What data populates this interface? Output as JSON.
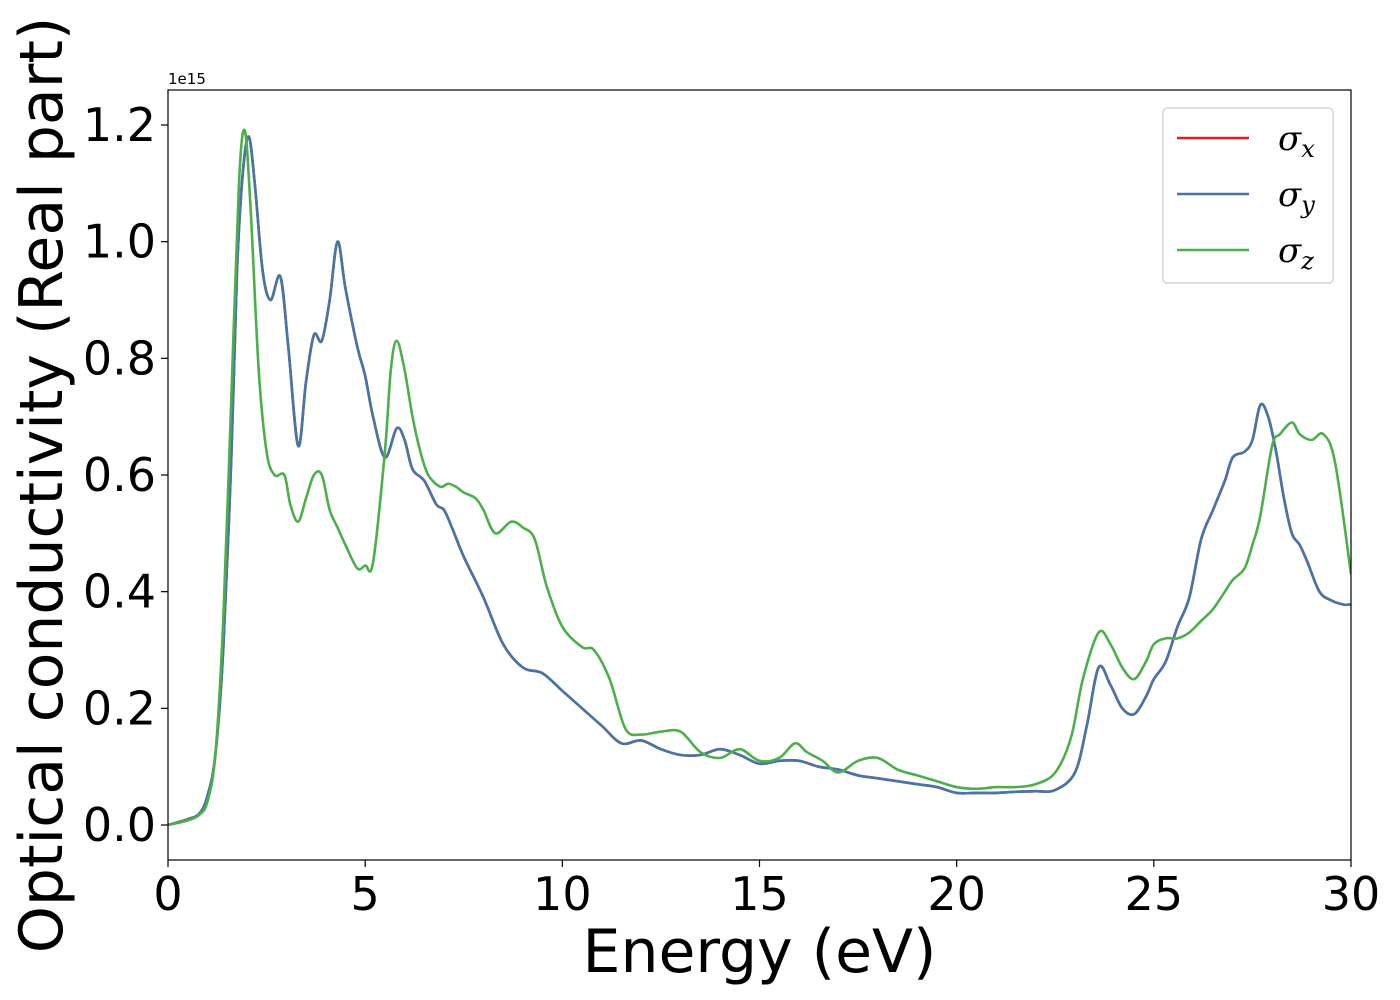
{
  "chart_data": {
    "type": "line",
    "xlabel": "Energy (eV)",
    "ylabel": "Optical conductivity (Real part)",
    "offset_label": "1e15",
    "xlim": [
      0,
      30
    ],
    "ylim": [
      -0.06,
      1.26
    ],
    "x_ticks": [
      0,
      5,
      10,
      15,
      20,
      25,
      30
    ],
    "x_tick_labels": [
      "0",
      "5",
      "10",
      "15",
      "20",
      "25",
      "30"
    ],
    "y_ticks": [
      0.0,
      0.2,
      0.4,
      0.6,
      0.8,
      1.0,
      1.2
    ],
    "y_tick_labels": [
      "0.0",
      "0.2",
      "0.4",
      "0.6",
      "0.8",
      "1.0",
      "1.2"
    ],
    "grid": false,
    "legend_position": "top-right",
    "series": [
      {
        "name": "σ",
        "subscript": "x",
        "color": "#e41a1c",
        "x": [
          0,
          0.5,
          0.8,
          1.0,
          1.2,
          1.4,
          1.6,
          1.75,
          1.9,
          2.05,
          2.2,
          2.4,
          2.6,
          2.85,
          3.05,
          3.3,
          3.5,
          3.7,
          3.9,
          4.1,
          4.3,
          4.5,
          4.8,
          5.0,
          5.2,
          5.5,
          5.8,
          6.0,
          6.2,
          6.5,
          6.8,
          7.0,
          7.2,
          7.5,
          8.0,
          8.5,
          9.0,
          9.5,
          10.0,
          10.5,
          11.0,
          11.5,
          12.0,
          12.5,
          13.0,
          13.5,
          14.0,
          14.5,
          15.0,
          15.5,
          16.0,
          16.5,
          17.0,
          17.5,
          18.0,
          18.5,
          19.0,
          19.5,
          20.0,
          20.5,
          21.0,
          21.5,
          22.0,
          22.5,
          23.0,
          23.3,
          23.6,
          23.9,
          24.2,
          24.5,
          24.8,
          25.0,
          25.3,
          25.6,
          25.9,
          26.2,
          26.5,
          26.8,
          27.0,
          27.3,
          27.5,
          27.7,
          27.9,
          28.1,
          28.3,
          28.5,
          28.7,
          28.9,
          29.2,
          29.5,
          29.8,
          30.0
        ],
        "y": [
          0,
          0.01,
          0.02,
          0.05,
          0.12,
          0.3,
          0.62,
          0.95,
          1.12,
          1.18,
          1.1,
          0.95,
          0.9,
          0.94,
          0.82,
          0.65,
          0.76,
          0.84,
          0.83,
          0.9,
          1.0,
          0.92,
          0.82,
          0.77,
          0.7,
          0.63,
          0.68,
          0.66,
          0.61,
          0.59,
          0.55,
          0.54,
          0.51,
          0.46,
          0.39,
          0.31,
          0.27,
          0.26,
          0.23,
          0.2,
          0.17,
          0.14,
          0.145,
          0.13,
          0.12,
          0.12,
          0.13,
          0.12,
          0.105,
          0.11,
          0.11,
          0.1,
          0.095,
          0.085,
          0.08,
          0.075,
          0.07,
          0.065,
          0.055,
          0.055,
          0.055,
          0.057,
          0.058,
          0.06,
          0.09,
          0.17,
          0.27,
          0.24,
          0.2,
          0.19,
          0.22,
          0.25,
          0.28,
          0.34,
          0.39,
          0.49,
          0.54,
          0.59,
          0.63,
          0.64,
          0.66,
          0.72,
          0.7,
          0.64,
          0.56,
          0.5,
          0.48,
          0.45,
          0.4,
          0.385,
          0.378,
          0.378
        ]
      },
      {
        "name": "σ",
        "subscript": "y",
        "color": "#4377a9",
        "x": [
          0,
          0.5,
          0.8,
          1.0,
          1.2,
          1.4,
          1.6,
          1.75,
          1.9,
          2.05,
          2.2,
          2.4,
          2.6,
          2.85,
          3.05,
          3.3,
          3.5,
          3.7,
          3.9,
          4.1,
          4.3,
          4.5,
          4.8,
          5.0,
          5.2,
          5.5,
          5.8,
          6.0,
          6.2,
          6.5,
          6.8,
          7.0,
          7.2,
          7.5,
          8.0,
          8.5,
          9.0,
          9.5,
          10.0,
          10.5,
          11.0,
          11.5,
          12.0,
          12.5,
          13.0,
          13.5,
          14.0,
          14.5,
          15.0,
          15.5,
          16.0,
          16.5,
          17.0,
          17.5,
          18.0,
          18.5,
          19.0,
          19.5,
          20.0,
          20.5,
          21.0,
          21.5,
          22.0,
          22.5,
          23.0,
          23.3,
          23.6,
          23.9,
          24.2,
          24.5,
          24.8,
          25.0,
          25.3,
          25.6,
          25.9,
          26.2,
          26.5,
          26.8,
          27.0,
          27.3,
          27.5,
          27.7,
          27.9,
          28.1,
          28.3,
          28.5,
          28.7,
          28.9,
          29.2,
          29.5,
          29.8,
          30.0
        ],
        "y": [
          0,
          0.01,
          0.02,
          0.05,
          0.12,
          0.3,
          0.62,
          0.95,
          1.12,
          1.18,
          1.1,
          0.95,
          0.9,
          0.94,
          0.82,
          0.65,
          0.76,
          0.84,
          0.83,
          0.9,
          1.0,
          0.92,
          0.82,
          0.77,
          0.7,
          0.63,
          0.68,
          0.66,
          0.61,
          0.59,
          0.55,
          0.54,
          0.51,
          0.46,
          0.39,
          0.31,
          0.27,
          0.26,
          0.23,
          0.2,
          0.17,
          0.14,
          0.145,
          0.13,
          0.12,
          0.12,
          0.13,
          0.12,
          0.105,
          0.11,
          0.11,
          0.1,
          0.095,
          0.085,
          0.08,
          0.075,
          0.07,
          0.065,
          0.055,
          0.055,
          0.055,
          0.057,
          0.058,
          0.06,
          0.09,
          0.17,
          0.27,
          0.24,
          0.2,
          0.19,
          0.22,
          0.25,
          0.28,
          0.34,
          0.39,
          0.49,
          0.54,
          0.59,
          0.63,
          0.64,
          0.66,
          0.72,
          0.7,
          0.64,
          0.56,
          0.5,
          0.48,
          0.45,
          0.4,
          0.385,
          0.378,
          0.378
        ]
      },
      {
        "name": "σ",
        "subscript": "z",
        "color": "#4daf4a",
        "x": [
          0,
          0.5,
          0.8,
          1.0,
          1.2,
          1.4,
          1.6,
          1.8,
          1.95,
          2.1,
          2.3,
          2.5,
          2.7,
          2.95,
          3.1,
          3.3,
          3.5,
          3.7,
          3.9,
          4.1,
          4.3,
          4.5,
          4.8,
          5.0,
          5.2,
          5.5,
          5.65,
          5.8,
          6.0,
          6.2,
          6.4,
          6.6,
          6.9,
          7.1,
          7.3,
          7.5,
          7.8,
          8.0,
          8.3,
          8.7,
          9.0,
          9.3,
          9.6,
          10.0,
          10.5,
          10.8,
          11.2,
          11.6,
          12.0,
          12.5,
          13.0,
          13.5,
          14.0,
          14.5,
          15.0,
          15.5,
          15.9,
          16.2,
          16.6,
          17.0,
          17.5,
          18.0,
          18.5,
          19.0,
          19.5,
          20.0,
          20.5,
          21.0,
          21.5,
          22.0,
          22.5,
          22.9,
          23.2,
          23.6,
          23.9,
          24.2,
          24.5,
          24.8,
          25.0,
          25.3,
          25.6,
          25.9,
          26.2,
          26.5,
          26.8,
          27.0,
          27.3,
          27.5,
          27.7,
          28.0,
          28.2,
          28.5,
          28.7,
          29.0,
          29.3,
          29.6,
          30.0
        ],
        "y": [
          0,
          0.008,
          0.018,
          0.04,
          0.12,
          0.35,
          0.72,
          1.1,
          1.19,
          1.05,
          0.78,
          0.64,
          0.6,
          0.6,
          0.55,
          0.52,
          0.56,
          0.6,
          0.6,
          0.54,
          0.51,
          0.48,
          0.44,
          0.445,
          0.45,
          0.64,
          0.78,
          0.83,
          0.78,
          0.7,
          0.64,
          0.6,
          0.58,
          0.585,
          0.58,
          0.57,
          0.56,
          0.54,
          0.5,
          0.52,
          0.51,
          0.49,
          0.41,
          0.34,
          0.305,
          0.3,
          0.25,
          0.165,
          0.155,
          0.16,
          0.16,
          0.125,
          0.115,
          0.13,
          0.11,
          0.115,
          0.14,
          0.125,
          0.11,
          0.09,
          0.11,
          0.115,
          0.095,
          0.085,
          0.075,
          0.065,
          0.062,
          0.065,
          0.065,
          0.07,
          0.09,
          0.15,
          0.25,
          0.33,
          0.31,
          0.27,
          0.25,
          0.28,
          0.31,
          0.32,
          0.32,
          0.33,
          0.35,
          0.37,
          0.4,
          0.42,
          0.44,
          0.48,
          0.53,
          0.65,
          0.67,
          0.69,
          0.67,
          0.66,
          0.67,
          0.62,
          0.43
        ]
      }
    ]
  }
}
